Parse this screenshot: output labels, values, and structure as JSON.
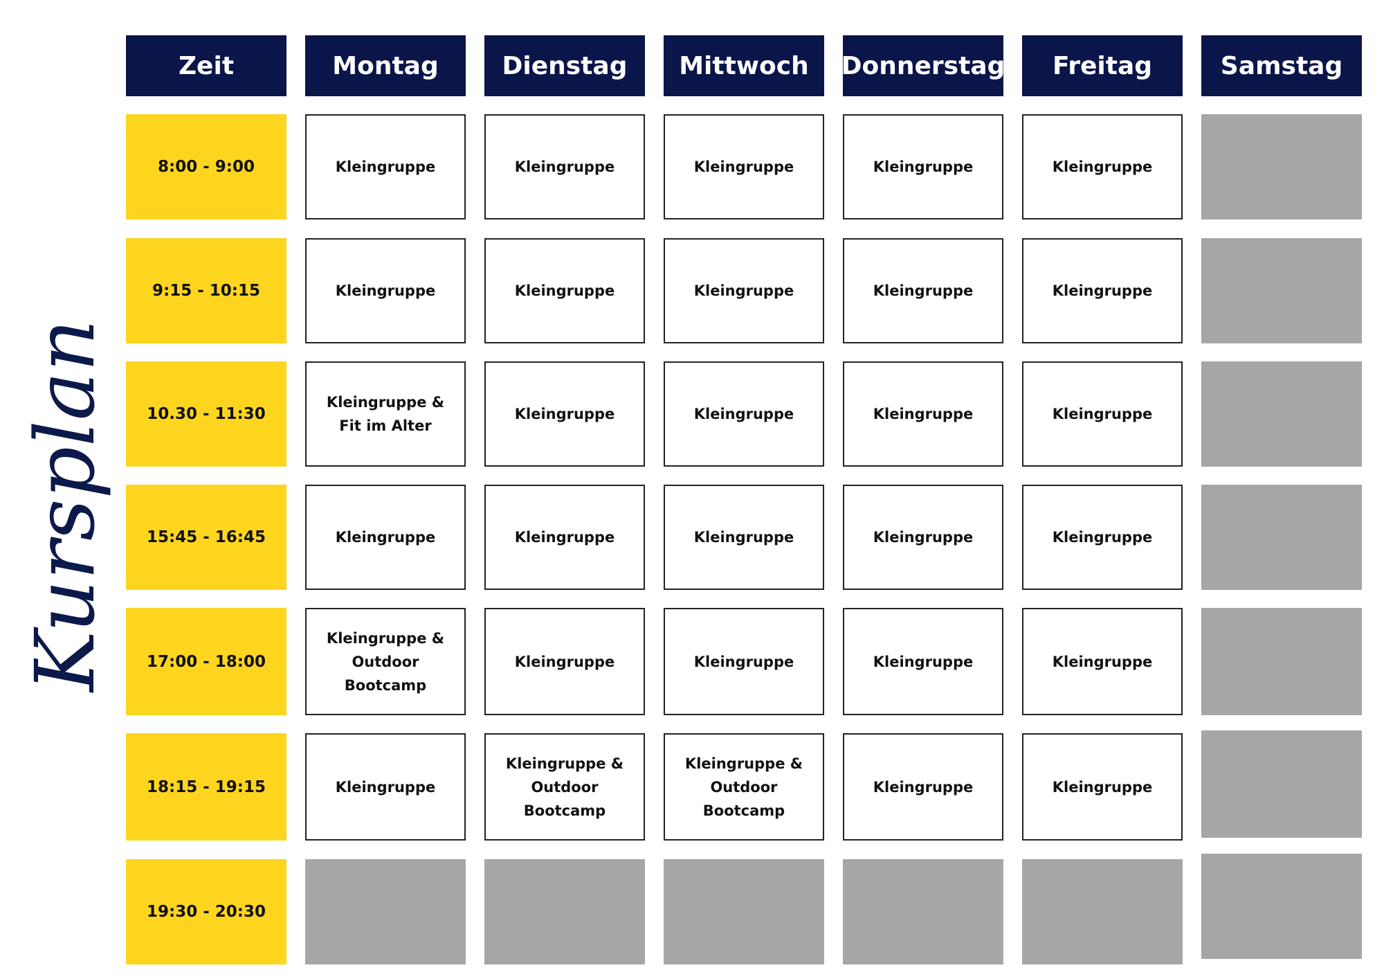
{
  "title": "Kursplan",
  "colors": {
    "header": "#0a154a",
    "time": "#fdd51f",
    "empty": "#a6a6a6",
    "title": "#0b1a4a"
  },
  "headers": [
    "Zeit",
    "Montag",
    "Dienstag",
    "Mittwoch",
    "Donnerstag",
    "Freitag",
    "Samstag"
  ],
  "rows": [
    {
      "time": "8:00 - 9:00",
      "slots": [
        "Kleingruppe",
        "Kleingruppe",
        "Kleingruppe",
        "Kleingruppe",
        "Kleingruppe",
        ""
      ]
    },
    {
      "time": "9:15 - 10:15",
      "slots": [
        "Kleingruppe",
        "Kleingruppe",
        "Kleingruppe",
        "Kleingruppe",
        "Kleingruppe",
        ""
      ]
    },
    {
      "time": "10.30 - 11:30",
      "slots": [
        "Kleingruppe &\nFit im Alter",
        "Kleingruppe",
        "Kleingruppe",
        "Kleingruppe",
        "Kleingruppe",
        ""
      ]
    },
    {
      "time": "15:45 - 16:45",
      "slots": [
        "Kleingruppe",
        "Kleingruppe",
        "Kleingruppe",
        "Kleingruppe",
        "Kleingruppe",
        ""
      ]
    },
    {
      "time": "17:00 - 18:00",
      "slots": [
        "Kleingruppe &\nOutdoor\nBootcamp",
        "Kleingruppe",
        "Kleingruppe",
        "Kleingruppe",
        "Kleingruppe",
        ""
      ]
    },
    {
      "time": "18:15 - 19:15",
      "slots": [
        "Kleingruppe",
        "Kleingruppe &\nOutdoor\nBootcamp",
        "Kleingruppe &\nOutdoor\nBootcamp",
        "Kleingruppe",
        "Kleingruppe",
        ""
      ]
    },
    {
      "time": "19:30 - 20:30",
      "slots": [
        "",
        "",
        "",
        "",
        "",
        ""
      ]
    }
  ]
}
